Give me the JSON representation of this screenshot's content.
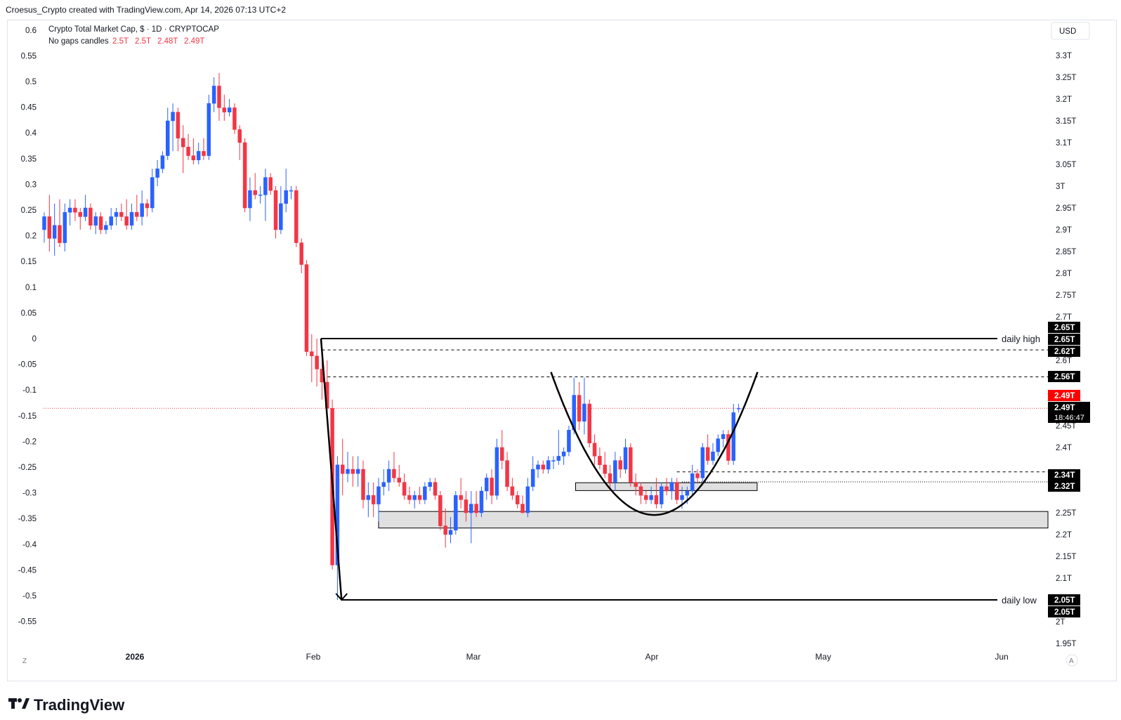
{
  "header": {
    "credit": "Croesus_Crypto created with TradingView.com, Apr 14, 2026 07:13 UTC+2",
    "symbol_line": "Crypto Total Market Cap, $ · 1D · CRYPTOCAP",
    "candles_label": "No gaps candles",
    "ohlc": [
      "2.5T",
      "2.5T",
      "2.48T",
      "2.49T"
    ],
    "currency": "USD"
  },
  "footer": {
    "brand": "TradingView",
    "z_button": "Z",
    "a_button": "A"
  },
  "colors": {
    "up": "#2962ff",
    "down": "#f23645",
    "line": "#000000",
    "zone": "#e0e0e0",
    "current": "#f23645"
  },
  "chart_data": {
    "type": "candlestick",
    "left_axis": {
      "ticks": [
        0.6,
        0.55,
        0.5,
        0.45,
        0.4,
        0.35,
        0.3,
        0.25,
        0.2,
        0.15,
        0.1,
        0.05,
        0,
        -0.05,
        -0.1,
        -0.15,
        -0.2,
        -0.25,
        -0.3,
        -0.35,
        -0.4,
        -0.45,
        -0.5,
        -0.55
      ],
      "tick_labels": [
        "0.6",
        "0.55",
        "0.5",
        "0.45",
        "0.4",
        "0.35",
        "0.3",
        "0.25",
        "0.2",
        "0.15",
        "0.1",
        "0.05",
        "0",
        "-0.05",
        "-0.1",
        "-0.15",
        "-0.2",
        "-0.25",
        "-0.3",
        "-0.35",
        "-0.4",
        "-0.45",
        "-0.5",
        "-0.55"
      ]
    },
    "right_axis": {
      "ticks": [
        3.3,
        3.25,
        3.2,
        3.15,
        3.1,
        3.05,
        3.0,
        2.95,
        2.9,
        2.85,
        2.8,
        2.75,
        2.7,
        2.6,
        2.45,
        2.4,
        2.25,
        2.2,
        2.15,
        2.1,
        2.0,
        1.95
      ],
      "tick_labels": [
        "3.3T",
        "3.25T",
        "3.2T",
        "3.15T",
        "3.1T",
        "3.05T",
        "3T",
        "2.95T",
        "2.9T",
        "2.85T",
        "2.8T",
        "2.75T",
        "2.7T",
        "2.6T",
        "2.45T",
        "2.4T",
        "2.25T",
        "2.2T",
        "2.15T",
        "2.1T",
        "2T",
        "1.95T"
      ],
      "range": [
        1.95,
        3.3
      ]
    },
    "x_labels": [
      "2026",
      "Feb",
      "Mar",
      "Apr",
      "May",
      "Jun"
    ],
    "price_tags": [
      {
        "value": 2.65,
        "label": "2.65T",
        "style": "black"
      },
      {
        "value": 2.65,
        "label": "2.65T",
        "style": "black"
      },
      {
        "value": 2.62,
        "label": "2.62T",
        "style": "black"
      },
      {
        "value": 2.56,
        "label": "2.56T",
        "style": "black"
      },
      {
        "value": 2.49,
        "label": "2.49T",
        "style": "red"
      },
      {
        "value": 2.49,
        "label": "2.49T",
        "style": "black",
        "sub": "18:46:47"
      },
      {
        "value": 2.34,
        "label": "2.34T",
        "style": "black"
      },
      {
        "value": 2.32,
        "label": "2.32T",
        "style": "black"
      },
      {
        "value": 2.05,
        "label": "2.05T",
        "style": "black"
      },
      {
        "value": 2.05,
        "label": "2.05T",
        "style": "black"
      }
    ],
    "annotations": [
      {
        "text": "daily high",
        "value": 2.65
      },
      {
        "text": "daily low",
        "value": 2.05
      }
    ],
    "levels": [
      {
        "value": 2.65,
        "style": "solid",
        "label": "daily high"
      },
      {
        "value": 2.624,
        "style": "dashed"
      },
      {
        "value": 2.562,
        "style": "dashed"
      },
      {
        "value": 2.49,
        "style": "dotted-red"
      },
      {
        "value": 2.344,
        "style": "dashed"
      },
      {
        "value": 2.321,
        "style": "dotted"
      },
      {
        "value": 2.05,
        "style": "solid",
        "label": "daily low"
      }
    ],
    "zones": [
      {
        "from_date": "Feb 13",
        "to_date": "far right",
        "low": 2.215,
        "high": 2.253
      },
      {
        "from_date": "Mar 15",
        "to_date": "Apr 21",
        "low": 2.301,
        "high": 2.319
      }
    ],
    "candles": [
      {
        "o": 2.9,
        "h": 2.94,
        "l": 2.87,
        "c": 2.93
      },
      {
        "o": 2.93,
        "h": 2.98,
        "l": 2.85,
        "c": 2.88
      },
      {
        "o": 2.88,
        "h": 2.96,
        "l": 2.84,
        "c": 2.91
      },
      {
        "o": 2.91,
        "h": 2.97,
        "l": 2.86,
        "c": 2.87
      },
      {
        "o": 2.87,
        "h": 2.96,
        "l": 2.85,
        "c": 2.94
      },
      {
        "o": 2.94,
        "h": 2.97,
        "l": 2.91,
        "c": 2.95
      },
      {
        "o": 2.95,
        "h": 2.97,
        "l": 2.92,
        "c": 2.94
      },
      {
        "o": 2.94,
        "h": 2.95,
        "l": 2.9,
        "c": 2.93
      },
      {
        "o": 2.93,
        "h": 2.98,
        "l": 2.92,
        "c": 2.95
      },
      {
        "o": 2.95,
        "h": 2.96,
        "l": 2.9,
        "c": 2.91
      },
      {
        "o": 2.91,
        "h": 2.94,
        "l": 2.89,
        "c": 2.93
      },
      {
        "o": 2.93,
        "h": 2.94,
        "l": 2.89,
        "c": 2.9
      },
      {
        "o": 2.9,
        "h": 2.92,
        "l": 2.89,
        "c": 2.91
      },
      {
        "o": 2.91,
        "h": 2.95,
        "l": 2.9,
        "c": 2.93
      },
      {
        "o": 2.93,
        "h": 2.95,
        "l": 2.91,
        "c": 2.94
      },
      {
        "o": 2.94,
        "h": 2.96,
        "l": 2.92,
        "c": 2.93
      },
      {
        "o": 2.93,
        "h": 2.97,
        "l": 2.9,
        "c": 2.91
      },
      {
        "o": 2.91,
        "h": 2.96,
        "l": 2.9,
        "c": 2.94
      },
      {
        "o": 2.94,
        "h": 2.98,
        "l": 2.92,
        "c": 2.93
      },
      {
        "o": 2.93,
        "h": 2.99,
        "l": 2.91,
        "c": 2.96
      },
      {
        "o": 2.96,
        "h": 2.97,
        "l": 2.93,
        "c": 2.95
      },
      {
        "o": 2.95,
        "h": 3.04,
        "l": 2.94,
        "c": 3.02
      },
      {
        "o": 3.02,
        "h": 3.06,
        "l": 3.0,
        "c": 3.04
      },
      {
        "o": 3.04,
        "h": 3.08,
        "l": 3.03,
        "c": 3.07
      },
      {
        "o": 3.07,
        "h": 3.18,
        "l": 3.06,
        "c": 3.15
      },
      {
        "o": 3.15,
        "h": 3.19,
        "l": 3.08,
        "c": 3.17
      },
      {
        "o": 3.17,
        "h": 3.18,
        "l": 3.08,
        "c": 3.11
      },
      {
        "o": 3.11,
        "h": 3.14,
        "l": 3.03,
        "c": 3.09
      },
      {
        "o": 3.09,
        "h": 3.12,
        "l": 3.06,
        "c": 3.07
      },
      {
        "o": 3.07,
        "h": 3.11,
        "l": 3.05,
        "c": 3.06
      },
      {
        "o": 3.06,
        "h": 3.1,
        "l": 3.05,
        "c": 3.08
      },
      {
        "o": 3.08,
        "h": 3.11,
        "l": 3.06,
        "c": 3.07
      },
      {
        "o": 3.07,
        "h": 3.21,
        "l": 3.06,
        "c": 3.19
      },
      {
        "o": 3.19,
        "h": 3.25,
        "l": 3.17,
        "c": 3.23
      },
      {
        "o": 3.23,
        "h": 3.26,
        "l": 3.15,
        "c": 3.18
      },
      {
        "o": 3.18,
        "h": 3.21,
        "l": 3.15,
        "c": 3.17
      },
      {
        "o": 3.17,
        "h": 3.2,
        "l": 3.16,
        "c": 3.18
      },
      {
        "o": 3.18,
        "h": 3.19,
        "l": 3.12,
        "c": 3.13
      },
      {
        "o": 3.13,
        "h": 3.14,
        "l": 3.06,
        "c": 3.1
      },
      {
        "o": 3.1,
        "h": 3.11,
        "l": 2.94,
        "c": 2.95
      },
      {
        "o": 2.95,
        "h": 3.02,
        "l": 2.92,
        "c": 2.99
      },
      {
        "o": 2.99,
        "h": 3.03,
        "l": 2.97,
        "c": 2.98
      },
      {
        "o": 2.98,
        "h": 3.0,
        "l": 2.96,
        "c": 2.98
      },
      {
        "o": 2.98,
        "h": 3.04,
        "l": 2.92,
        "c": 3.02
      },
      {
        "o": 3.02,
        "h": 3.03,
        "l": 2.98,
        "c": 2.99
      },
      {
        "o": 2.99,
        "h": 3.0,
        "l": 2.88,
        "c": 2.9
      },
      {
        "o": 2.9,
        "h": 3.0,
        "l": 2.89,
        "c": 2.96
      },
      {
        "o": 2.96,
        "h": 3.04,
        "l": 2.94,
        "c": 2.99
      },
      {
        "o": 2.99,
        "h": 3.0,
        "l": 2.97,
        "c": 2.99
      },
      {
        "o": 2.99,
        "h": 3.0,
        "l": 2.86,
        "c": 2.87
      },
      {
        "o": 2.87,
        "h": 2.88,
        "l": 2.8,
        "c": 2.82
      },
      {
        "o": 2.82,
        "h": 2.83,
        "l": 2.61,
        "c": 2.62
      },
      {
        "o": 2.62,
        "h": 2.66,
        "l": 2.55,
        "c": 2.61
      },
      {
        "o": 2.61,
        "h": 2.65,
        "l": 2.54,
        "c": 2.58
      },
      {
        "o": 2.58,
        "h": 2.63,
        "l": 2.51,
        "c": 2.55
      },
      {
        "o": 2.55,
        "h": 2.6,
        "l": 2.48,
        "c": 2.49
      },
      {
        "o": 2.49,
        "h": 2.51,
        "l": 2.12,
        "c": 2.13
      },
      {
        "o": 2.13,
        "h": 2.38,
        "l": 2.05,
        "c": 2.36
      },
      {
        "o": 2.36,
        "h": 2.42,
        "l": 2.29,
        "c": 2.34
      },
      {
        "o": 2.34,
        "h": 2.39,
        "l": 2.32,
        "c": 2.35
      },
      {
        "o": 2.35,
        "h": 2.38,
        "l": 2.31,
        "c": 2.34
      },
      {
        "o": 2.34,
        "h": 2.38,
        "l": 2.31,
        "c": 2.35
      },
      {
        "o": 2.35,
        "h": 2.37,
        "l": 2.26,
        "c": 2.28
      },
      {
        "o": 2.28,
        "h": 2.32,
        "l": 2.24,
        "c": 2.29
      },
      {
        "o": 2.29,
        "h": 2.32,
        "l": 2.24,
        "c": 2.27
      },
      {
        "o": 2.27,
        "h": 2.33,
        "l": 2.23,
        "c": 2.31
      },
      {
        "o": 2.31,
        "h": 2.35,
        "l": 2.29,
        "c": 2.32
      },
      {
        "o": 2.32,
        "h": 2.37,
        "l": 2.3,
        "c": 2.35
      },
      {
        "o": 2.35,
        "h": 2.39,
        "l": 2.32,
        "c": 2.33
      },
      {
        "o": 2.33,
        "h": 2.36,
        "l": 2.31,
        "c": 2.32
      },
      {
        "o": 2.32,
        "h": 2.34,
        "l": 2.28,
        "c": 2.29
      },
      {
        "o": 2.29,
        "h": 2.31,
        "l": 2.27,
        "c": 2.28
      },
      {
        "o": 2.28,
        "h": 2.3,
        "l": 2.26,
        "c": 2.29
      },
      {
        "o": 2.29,
        "h": 2.31,
        "l": 2.27,
        "c": 2.28
      },
      {
        "o": 2.28,
        "h": 2.32,
        "l": 2.27,
        "c": 2.31
      },
      {
        "o": 2.31,
        "h": 2.33,
        "l": 2.3,
        "c": 2.32
      },
      {
        "o": 2.32,
        "h": 2.33,
        "l": 2.28,
        "c": 2.29
      },
      {
        "o": 2.29,
        "h": 2.3,
        "l": 2.21,
        "c": 2.22
      },
      {
        "o": 2.22,
        "h": 2.26,
        "l": 2.17,
        "c": 2.2
      },
      {
        "o": 2.2,
        "h": 2.24,
        "l": 2.18,
        "c": 2.21
      },
      {
        "o": 2.21,
        "h": 2.3,
        "l": 2.2,
        "c": 2.29
      },
      {
        "o": 2.29,
        "h": 2.33,
        "l": 2.26,
        "c": 2.28
      },
      {
        "o": 2.28,
        "h": 2.3,
        "l": 2.23,
        "c": 2.25
      },
      {
        "o": 2.25,
        "h": 2.3,
        "l": 2.18,
        "c": 2.27
      },
      {
        "o": 2.27,
        "h": 2.3,
        "l": 2.24,
        "c": 2.25
      },
      {
        "o": 2.25,
        "h": 2.31,
        "l": 2.24,
        "c": 2.3
      },
      {
        "o": 2.3,
        "h": 2.34,
        "l": 2.28,
        "c": 2.33
      },
      {
        "o": 2.33,
        "h": 2.35,
        "l": 2.27,
        "c": 2.29
      },
      {
        "o": 2.29,
        "h": 2.42,
        "l": 2.28,
        "c": 2.4
      },
      {
        "o": 2.4,
        "h": 2.44,
        "l": 2.35,
        "c": 2.37
      },
      {
        "o": 2.37,
        "h": 2.39,
        "l": 2.3,
        "c": 2.31
      },
      {
        "o": 2.31,
        "h": 2.33,
        "l": 2.28,
        "c": 2.29
      },
      {
        "o": 2.29,
        "h": 2.3,
        "l": 2.26,
        "c": 2.27
      },
      {
        "o": 2.27,
        "h": 2.29,
        "l": 2.25,
        "c": 2.25
      },
      {
        "o": 2.25,
        "h": 2.33,
        "l": 2.24,
        "c": 2.31
      },
      {
        "o": 2.31,
        "h": 2.38,
        "l": 2.3,
        "c": 2.35
      },
      {
        "o": 2.35,
        "h": 2.37,
        "l": 2.33,
        "c": 2.36
      },
      {
        "o": 2.36,
        "h": 2.37,
        "l": 2.34,
        "c": 2.35
      },
      {
        "o": 2.35,
        "h": 2.38,
        "l": 2.34,
        "c": 2.37
      },
      {
        "o": 2.37,
        "h": 2.38,
        "l": 2.35,
        "c": 2.37
      },
      {
        "o": 2.37,
        "h": 2.44,
        "l": 2.36,
        "c": 2.38
      },
      {
        "o": 2.38,
        "h": 2.4,
        "l": 2.36,
        "c": 2.39
      },
      {
        "o": 2.39,
        "h": 2.45,
        "l": 2.38,
        "c": 2.44
      },
      {
        "o": 2.44,
        "h": 2.56,
        "l": 2.43,
        "c": 2.52
      },
      {
        "o": 2.52,
        "h": 2.55,
        "l": 2.44,
        "c": 2.46
      },
      {
        "o": 2.46,
        "h": 2.56,
        "l": 2.43,
        "c": 2.5
      },
      {
        "o": 2.5,
        "h": 2.51,
        "l": 2.4,
        "c": 2.41
      },
      {
        "o": 2.41,
        "h": 2.43,
        "l": 2.36,
        "c": 2.38
      },
      {
        "o": 2.38,
        "h": 2.4,
        "l": 2.35,
        "c": 2.36
      },
      {
        "o": 2.36,
        "h": 2.39,
        "l": 2.33,
        "c": 2.34
      },
      {
        "o": 2.34,
        "h": 2.36,
        "l": 2.3,
        "c": 2.32
      },
      {
        "o": 2.32,
        "h": 2.39,
        "l": 2.3,
        "c": 2.37
      },
      {
        "o": 2.37,
        "h": 2.38,
        "l": 2.33,
        "c": 2.35
      },
      {
        "o": 2.35,
        "h": 2.42,
        "l": 2.34,
        "c": 2.4
      },
      {
        "o": 2.4,
        "h": 2.41,
        "l": 2.31,
        "c": 2.32
      },
      {
        "o": 2.32,
        "h": 2.34,
        "l": 2.29,
        "c": 2.31
      },
      {
        "o": 2.31,
        "h": 2.32,
        "l": 2.27,
        "c": 2.29
      },
      {
        "o": 2.29,
        "h": 2.3,
        "l": 2.27,
        "c": 2.28
      },
      {
        "o": 2.28,
        "h": 2.31,
        "l": 2.27,
        "c": 2.29
      },
      {
        "o": 2.29,
        "h": 2.33,
        "l": 2.26,
        "c": 2.27
      },
      {
        "o": 2.27,
        "h": 2.32,
        "l": 2.26,
        "c": 2.31
      },
      {
        "o": 2.31,
        "h": 2.33,
        "l": 2.29,
        "c": 2.3
      },
      {
        "o": 2.3,
        "h": 2.33,
        "l": 2.28,
        "c": 2.32
      },
      {
        "o": 2.32,
        "h": 2.33,
        "l": 2.27,
        "c": 2.28
      },
      {
        "o": 2.28,
        "h": 2.31,
        "l": 2.26,
        "c": 2.29
      },
      {
        "o": 2.29,
        "h": 2.31,
        "l": 2.27,
        "c": 2.3
      },
      {
        "o": 2.3,
        "h": 2.36,
        "l": 2.29,
        "c": 2.34
      },
      {
        "o": 2.34,
        "h": 2.35,
        "l": 2.32,
        "c": 2.33
      },
      {
        "o": 2.33,
        "h": 2.41,
        "l": 2.32,
        "c": 2.4
      },
      {
        "o": 2.4,
        "h": 2.43,
        "l": 2.36,
        "c": 2.37
      },
      {
        "o": 2.37,
        "h": 2.41,
        "l": 2.36,
        "c": 2.39
      },
      {
        "o": 2.39,
        "h": 2.43,
        "l": 2.38,
        "c": 2.42
      },
      {
        "o": 2.42,
        "h": 2.44,
        "l": 2.4,
        "c": 2.43
      },
      {
        "o": 2.43,
        "h": 2.44,
        "l": 2.36,
        "c": 2.37
      },
      {
        "o": 2.37,
        "h": 2.5,
        "l": 2.36,
        "c": 2.48
      },
      {
        "o": 2.49,
        "h": 2.5,
        "l": 2.48,
        "c": 2.49
      }
    ]
  }
}
